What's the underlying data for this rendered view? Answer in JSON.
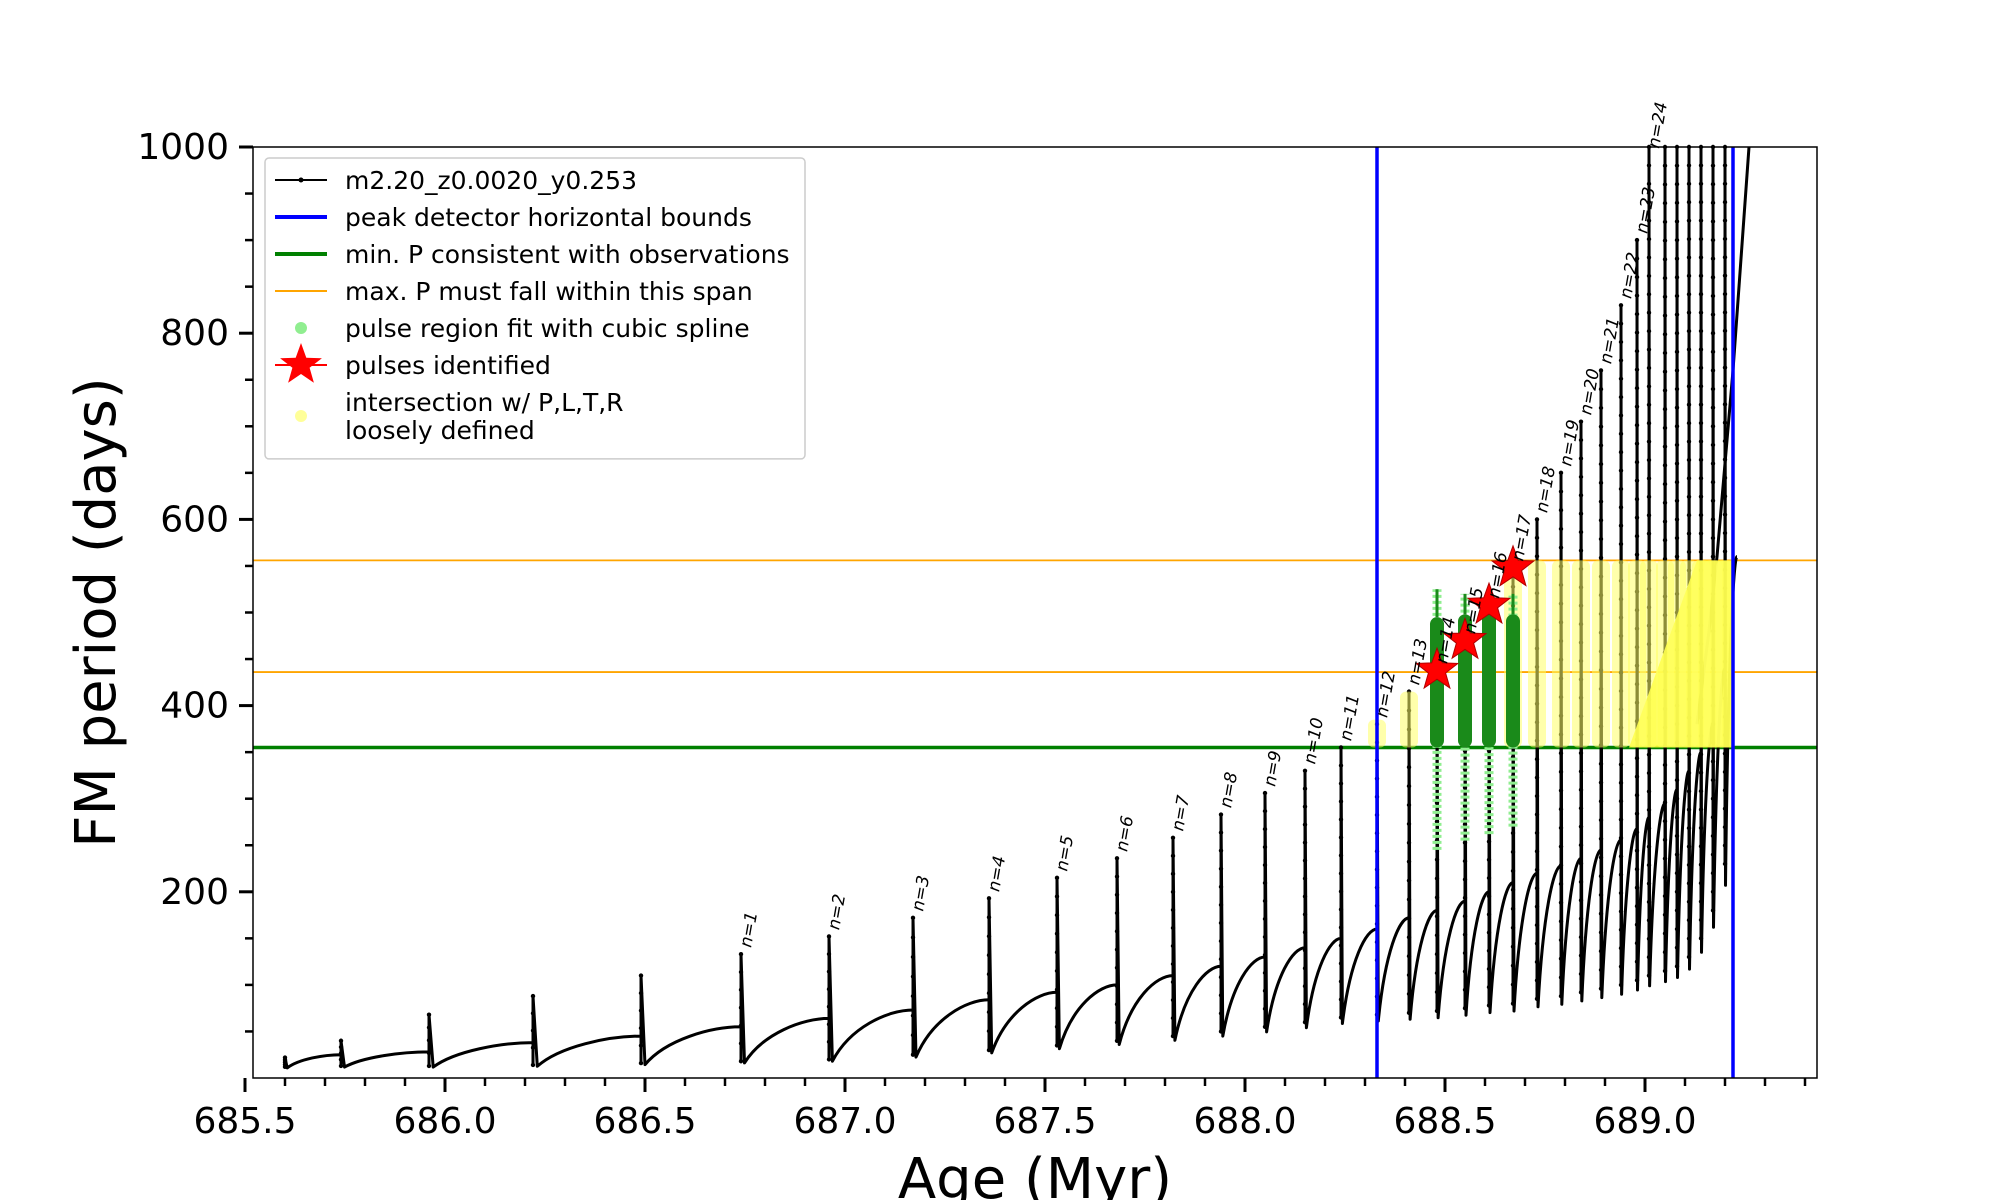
{
  "chart_data": {
    "type": "line",
    "title": "",
    "xlabel": "Age (Myr)",
    "ylabel": "FM period (days)",
    "xlim": [
      685.52,
      689.43
    ],
    "ylim": [
      0,
      1000
    ],
    "x_ticks": [
      "685.5",
      "686.0",
      "686.5",
      "687.0",
      "687.5",
      "688.0",
      "688.5",
      "689.0"
    ],
    "x_tick_values": [
      685.5,
      686.0,
      686.5,
      687.0,
      687.5,
      688.0,
      688.5,
      689.0
    ],
    "y_ticks": [
      "200",
      "400",
      "600",
      "800",
      "1000"
    ],
    "y_tick_values": [
      200,
      400,
      600,
      800,
      1000
    ],
    "grid": false,
    "legend_position": "top-left",
    "legend": [
      {
        "label": "m2.20_z0.0020_y0.253",
        "color": "#000000",
        "marker": "line-dot"
      },
      {
        "label": "peak detector horizontal bounds",
        "color": "#0000ff",
        "marker": "line"
      },
      {
        "label": "min. P consistent with observations",
        "color": "#008000",
        "marker": "line"
      },
      {
        "label": "max. P must fall within this span",
        "color": "#ffa500",
        "marker": "thin-line"
      },
      {
        "label": "pulse region fit with cubic spline",
        "color": "#90ee90",
        "marker": "dot"
      },
      {
        "label": "pulses identified",
        "color": "#ff0000",
        "marker": "star"
      },
      {
        "label": "intersection w/ P,L,T,R",
        "label2": "loosely defined",
        "color": "#ffff99",
        "marker": "dot"
      }
    ],
    "vlines": [
      {
        "x": 688.33,
        "color": "#0000ff",
        "series": "peak detector horizontal bounds"
      },
      {
        "x": 689.22,
        "color": "#0000ff",
        "series": "peak detector horizontal bounds"
      }
    ],
    "hlines": [
      {
        "y": 355,
        "color": "#008000",
        "series": "min. P consistent with observations"
      },
      {
        "y": 436,
        "color": "#ffa500",
        "series": "max. P must fall within this span"
      },
      {
        "y": 556,
        "color": "#ffa500",
        "series": "max. P must fall within this span"
      }
    ],
    "pulses": [
      {
        "x": 685.6,
        "base": 12,
        "peak": 22,
        "end": 25,
        "label": ""
      },
      {
        "x": 685.74,
        "base": 13,
        "peak": 40,
        "end": 28,
        "label": ""
      },
      {
        "x": 685.96,
        "base": 13,
        "peak": 68,
        "end": 38,
        "label": ""
      },
      {
        "x": 686.22,
        "base": 14,
        "peak": 88,
        "end": 45,
        "label": ""
      },
      {
        "x": 686.49,
        "base": 16,
        "peak": 110,
        "end": 55,
        "label": ""
      },
      {
        "x": 686.74,
        "base": 18,
        "peak": 133,
        "end": 64,
        "label": "n=1"
      },
      {
        "x": 686.96,
        "base": 20,
        "peak": 152,
        "end": 73,
        "label": "n=2"
      },
      {
        "x": 687.17,
        "base": 25,
        "peak": 172,
        "end": 84,
        "label": "n=3"
      },
      {
        "x": 687.36,
        "base": 30,
        "peak": 193,
        "end": 92,
        "label": "n=4"
      },
      {
        "x": 687.53,
        "base": 35,
        "peak": 215,
        "end": 100,
        "label": "n=5"
      },
      {
        "x": 687.68,
        "base": 40,
        "peak": 236,
        "end": 110,
        "label": "n=6"
      },
      {
        "x": 687.82,
        "base": 45,
        "peak": 258,
        "end": 120,
        "label": "n=7"
      },
      {
        "x": 687.94,
        "base": 50,
        "peak": 283,
        "end": 130,
        "label": "n=8"
      },
      {
        "x": 688.05,
        "base": 55,
        "peak": 306,
        "end": 140,
        "label": "n=9"
      },
      {
        "x": 688.15,
        "base": 60,
        "peak": 330,
        "end": 150,
        "label": "n=10"
      },
      {
        "x": 688.24,
        "base": 65,
        "peak": 355,
        "end": 160,
        "label": "n=11"
      },
      {
        "x": 688.33,
        "base": 68,
        "peak": 380,
        "end": 172,
        "label": "n=12"
      },
      {
        "x": 688.41,
        "base": 70,
        "peak": 415,
        "end": 180,
        "label": "n=13"
      },
      {
        "x": 688.48,
        "base": 72,
        "peak": 438,
        "end": 190,
        "label": "n=14"
      },
      {
        "x": 688.55,
        "base": 75,
        "peak": 470,
        "end": 200,
        "label": "n=15"
      },
      {
        "x": 688.61,
        "base": 78,
        "peak": 508,
        "end": 210,
        "label": "n=16"
      },
      {
        "x": 688.67,
        "base": 80,
        "peak": 548,
        "end": 220,
        "label": "n=17"
      },
      {
        "x": 688.73,
        "base": 85,
        "peak": 600,
        "end": 228,
        "label": "n=18"
      },
      {
        "x": 688.79,
        "base": 88,
        "peak": 650,
        "end": 236,
        "label": "n=19"
      },
      {
        "x": 688.84,
        "base": 92,
        "peak": 705,
        "end": 245,
        "label": "n=20"
      },
      {
        "x": 688.89,
        "base": 96,
        "peak": 760,
        "end": 256,
        "label": "n=21"
      },
      {
        "x": 688.94,
        "base": 100,
        "peak": 830,
        "end": 268,
        "label": "n=22"
      },
      {
        "x": 688.98,
        "base": 105,
        "peak": 900,
        "end": 280,
        "label": "n=23"
      },
      {
        "x": 689.01,
        "base": 110,
        "peak": 1000,
        "end": 295,
        "label": "n=24"
      },
      {
        "x": 689.05,
        "base": 115,
        "peak": 1000,
        "end": 310,
        "label": ""
      },
      {
        "x": 689.08,
        "base": 120,
        "peak": 1000,
        "end": 330,
        "label": ""
      },
      {
        "x": 689.11,
        "base": 130,
        "peak": 1000,
        "end": 350,
        "label": ""
      },
      {
        "x": 689.14,
        "base": 150,
        "peak": 1000,
        "end": 380,
        "label": ""
      },
      {
        "x": 689.17,
        "base": 180,
        "peak": 1000,
        "end": 440,
        "label": ""
      },
      {
        "x": 689.2,
        "base": 230,
        "peak": 1000,
        "end": 560,
        "label": ""
      }
    ],
    "final_rise": [
      [
        689.13,
        380
      ],
      [
        689.16,
        480
      ],
      [
        689.18,
        560
      ],
      [
        689.2,
        660
      ],
      [
        689.22,
        760
      ],
      [
        689.24,
        880
      ],
      [
        689.26,
        1000
      ]
    ],
    "spline_regions": [
      {
        "x": 688.48,
        "ymin": 245,
        "ymax": 525,
        "dense_min": 355,
        "dense_max": 495
      },
      {
        "x": 688.55,
        "ymin": 255,
        "ymax": 520,
        "dense_min": 355,
        "dense_max": 498
      },
      {
        "x": 688.61,
        "ymin": 262,
        "ymax": 515,
        "dense_min": 355,
        "dense_max": 500
      },
      {
        "x": 688.67,
        "ymin": 270,
        "ymax": 520,
        "dense_min": 355,
        "dense_max": 498
      }
    ],
    "pulses_identified": [
      {
        "x": 688.48,
        "y": 438
      },
      {
        "x": 688.55,
        "y": 470
      },
      {
        "x": 688.61,
        "y": 508
      },
      {
        "x": 688.67,
        "y": 548
      }
    ],
    "intersection_regions": [
      {
        "x": 688.33,
        "ymin": 355,
        "ymax": 385
      },
      {
        "x": 688.41,
        "ymin": 355,
        "ymax": 415
      },
      {
        "x": 688.67,
        "ymin": 355,
        "ymax": 555
      },
      {
        "x": 688.73,
        "ymin": 355,
        "ymax": 556
      },
      {
        "x": 688.79,
        "ymin": 355,
        "ymax": 556
      },
      {
        "x": 688.84,
        "ymin": 355,
        "ymax": 556
      },
      {
        "x": 688.89,
        "ymin": 355,
        "ymax": 556
      },
      {
        "x": 688.94,
        "ymin": 355,
        "ymax": 556
      },
      {
        "x": 688.98,
        "ymin": 355,
        "ymax": 556
      },
      {
        "x": 689.01,
        "ymin": 355,
        "ymax": 556
      },
      {
        "x": 689.05,
        "ymin": 355,
        "ymax": 556
      },
      {
        "x": 689.08,
        "ymin": 355,
        "ymax": 556
      },
      {
        "x": 689.11,
        "ymin": 355,
        "ymax": 556
      },
      {
        "x": 689.14,
        "ymin": 355,
        "ymax": 556
      },
      {
        "x": 689.17,
        "ymin": 355,
        "ymax": 556
      },
      {
        "x": 689.2,
        "ymin": 355,
        "ymax": 556
      }
    ],
    "intersection_wedge": [
      [
        688.96,
        355
      ],
      [
        689.13,
        556
      ],
      [
        689.22,
        556
      ],
      [
        689.22,
        355
      ]
    ]
  }
}
